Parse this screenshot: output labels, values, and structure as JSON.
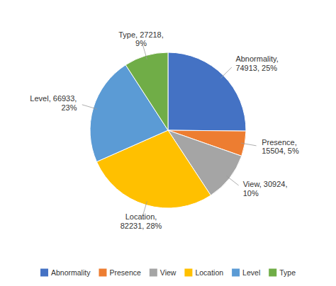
{
  "chart_data": {
    "type": "pie",
    "categories": [
      "Abnormality",
      "Presence",
      "View",
      "Location",
      "Level",
      "Type"
    ],
    "values": [
      74913,
      15504,
      30924,
      82231,
      66933,
      27218
    ],
    "value_labels": [
      "Abnormality,\n74913, 25%",
      "Presence,\n15504, 5%",
      "View, 30924,\n10%",
      "Location,\n82231, 28%",
      "Level, 66933,\n23%",
      "Type, 27218,\n9%"
    ],
    "colors": [
      "#4472C4",
      "#ED7D31",
      "#A5A5A5",
      "#FFC000",
      "#5B9BD5",
      "#70AD47"
    ],
    "legend": "bottom"
  }
}
